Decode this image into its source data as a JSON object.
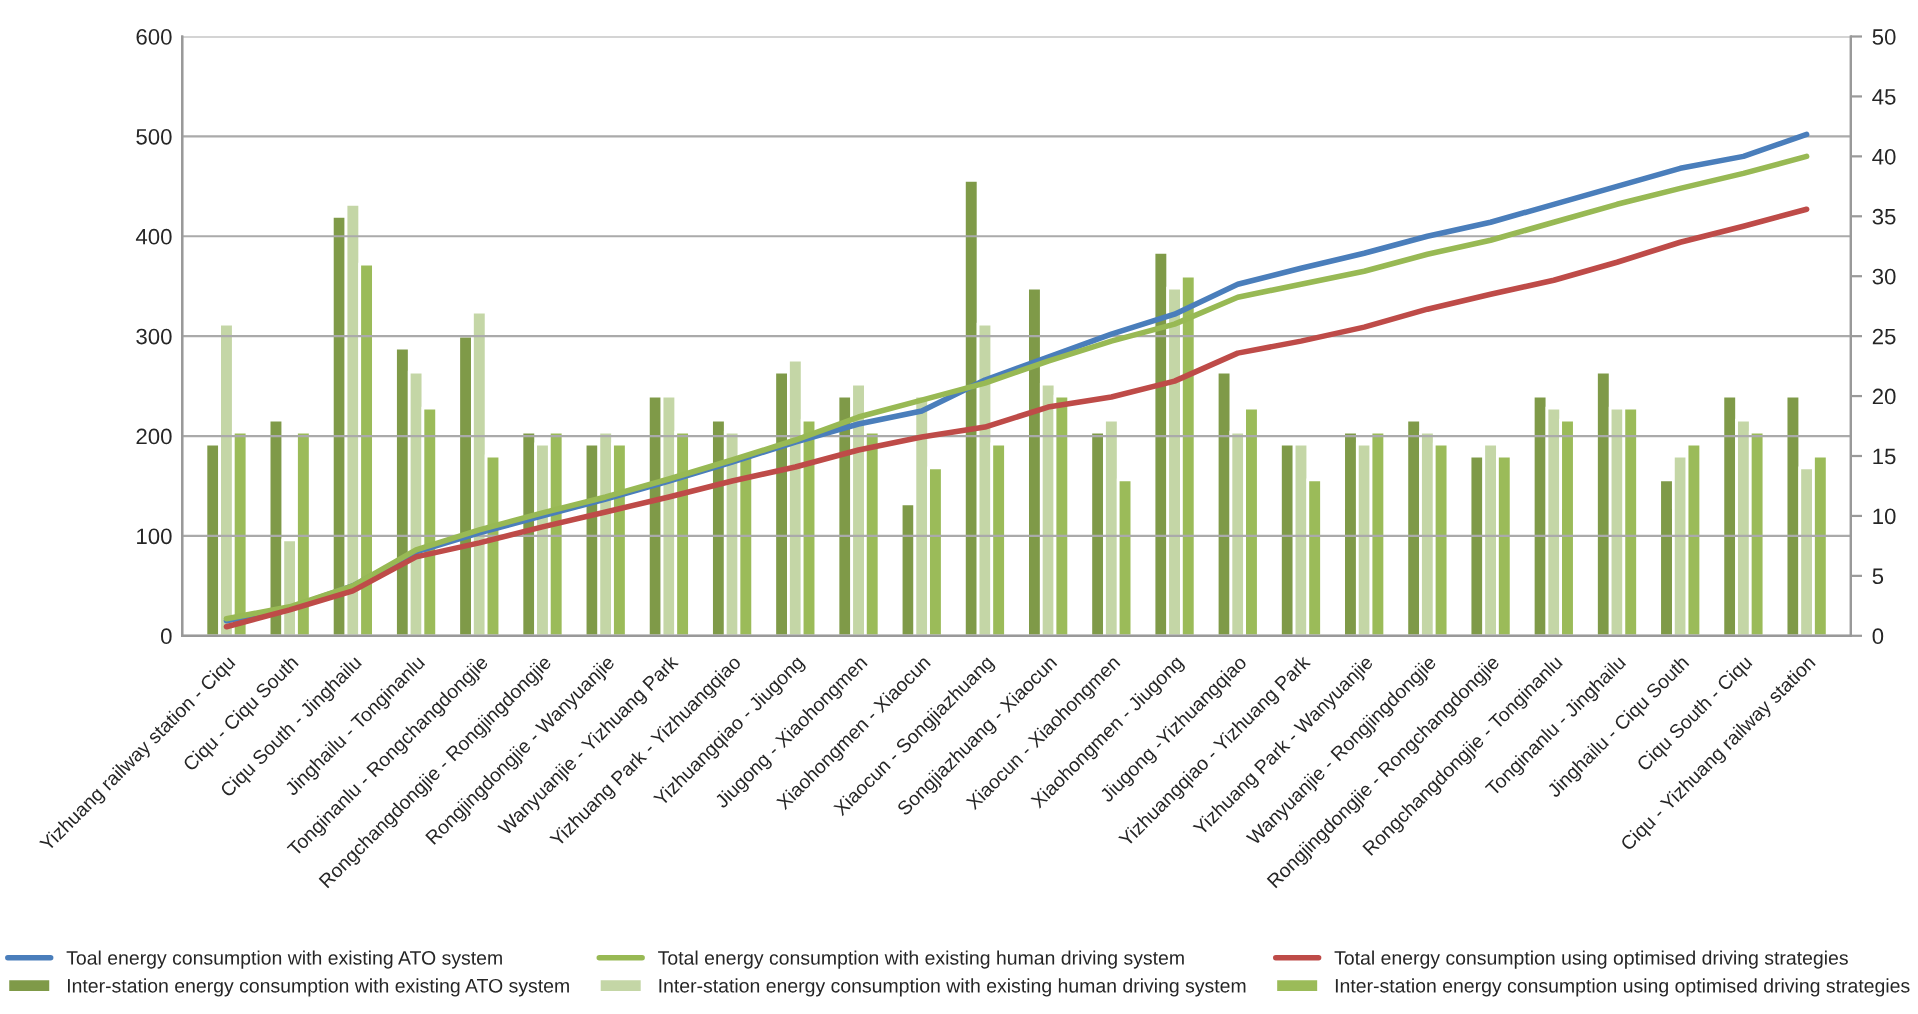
{
  "chart_data": {
    "type": "bar",
    "categories": [
      "Yizhuang railway station - Ciqu",
      "Ciqu - Ciqu South",
      "Ciqu South - Jinghailu",
      "Jinghailu - Tonginanlu",
      "Tonginanlu - Rongchangdongjie",
      "Rongchangdongjie - Rongjingdongjie",
      "Rongjingdongjie - Wanyuanjie",
      "Wanyuanjie - Yizhuang Park",
      "Yizhuang Park - Yizhuangqiao",
      "Yizhuangqiao - Jiugong",
      "Jiugong - Xiaohongmen",
      "Xiaohongmen - Xiaocun",
      "Xiaocun - Songjiazhuang",
      "Songjiazhuang - Xiaocun",
      "Xiaocun - Xiaohongmen",
      "Xiaohongmen - Jiugong",
      "Jiugong -Yizhuangqiao",
      "Yizhuangqiao - Yizhuang Park",
      "Yizhuang Park - Wanyuanjie",
      "Wanyuanjie - Rongjingdongjie",
      "Rongjingdongjie - Rongchangdongjie",
      "Rongchangdongjie - Tonginanlu",
      "Tonginanlu - Jinghailu",
      "Jinghailu - Ciqu South",
      "Ciqu South - Ciqu",
      "Ciqu - Yizhuang railway station"
    ],
    "series": [
      {
        "name": "Toal energy consumption with existing ATO system",
        "type": "line",
        "axis": "y",
        "color": "#4a7ebb",
        "values": [
          15,
          28,
          50,
          84,
          103,
          120,
          137,
          155,
          174,
          194,
          212,
          225,
          256,
          279,
          302,
          322,
          352,
          368,
          383,
          400,
          414,
          432,
          450,
          468,
          480,
          502
        ]
      },
      {
        "name": "Total energy consumption with existing human driving system",
        "type": "line",
        "axis": "y",
        "color": "#98b954",
        "values": [
          17,
          29,
          50,
          86,
          106,
          123,
          139,
          157,
          176,
          196,
          219,
          236,
          253,
          275,
          295,
          312,
          339,
          352,
          365,
          382,
          396,
          414,
          432,
          448,
          463,
          480
        ]
      },
      {
        "name": "Total energy consumption using optimised driving strategies",
        "type": "line",
        "axis": "y",
        "color": "#be4b48",
        "values": [
          9,
          26,
          45,
          79,
          93,
          109,
          124,
          139,
          155,
          169,
          186,
          199,
          209,
          229,
          239,
          255,
          283,
          295,
          309,
          327,
          342,
          356,
          374,
          394,
          410,
          427
        ]
      },
      {
        "name": "Inter-station energy consumption with existing ATO system",
        "axis": "y2",
        "color": "#7f9a48",
        "values": [
          16,
          18,
          35,
          24,
          25,
          17,
          16,
          20,
          18,
          22,
          20,
          11,
          38,
          29,
          17,
          32,
          22,
          16,
          17,
          18,
          15,
          20,
          22,
          13,
          20,
          20
        ]
      },
      {
        "name": "Inter-station energy consumption with existing human driving system",
        "axis": "y2",
        "color": "#c4d6a6",
        "values": [
          26,
          8,
          36,
          22,
          27,
          16,
          17,
          20,
          17,
          23,
          21,
          20,
          26,
          21,
          18,
          29,
          17,
          16,
          16,
          17,
          16,
          19,
          19,
          15,
          18,
          14
        ]
      },
      {
        "name": "Inter-station energy consumption using optimised driving strategies",
        "axis": "y2",
        "color": "#9bbb59",
        "values": [
          17,
          17,
          31,
          19,
          15,
          17,
          16,
          17,
          15,
          18,
          17,
          14,
          16,
          20,
          13,
          30,
          19,
          13,
          17,
          16,
          15,
          18,
          19,
          16,
          17,
          15
        ]
      }
    ],
    "ylim": [
      0,
      600
    ],
    "yticks": [
      0,
      100,
      200,
      300,
      400,
      500,
      600
    ],
    "y2lim": [
      0,
      50
    ],
    "y2ticks": [
      0,
      5,
      10,
      15,
      20,
      25,
      30,
      35,
      40,
      45,
      50
    ],
    "grid": "y",
    "legend": "bottom"
  }
}
